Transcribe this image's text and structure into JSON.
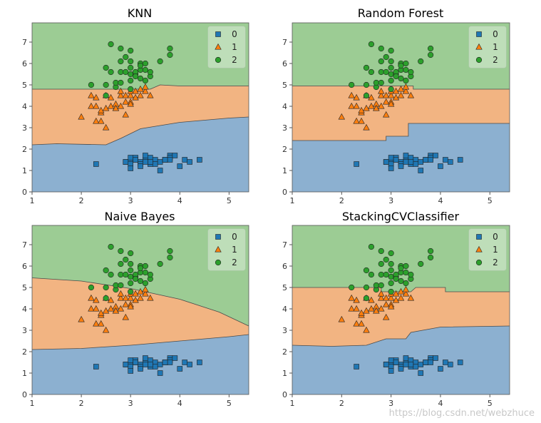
{
  "figure": {
    "watermark": "https://blog.csdn.net/webzhuce",
    "colors": {
      "region_class0": "#8cb0d0",
      "region_class1": "#f2b482",
      "region_class2": "#9ccc94",
      "marker_class0": "#1f77b4",
      "marker_class1": "#ff7f0e",
      "marker_class2": "#2ca02c"
    }
  },
  "chart_data": [
    {
      "type": "scatter",
      "title": "KNN",
      "xlim": [
        1,
        5.4
      ],
      "ylim": [
        0,
        7.9
      ],
      "xticks": [
        "1",
        "2",
        "3",
        "4",
        "5"
      ],
      "yticks": [
        "0",
        "1",
        "2",
        "3",
        "4",
        "5",
        "6",
        "7"
      ],
      "legend": {
        "position": "top-right",
        "labels": [
          "0",
          "1",
          "2"
        ],
        "markers": [
          "square",
          "triangle",
          "circle"
        ]
      },
      "boundary_0_1": [
        [
          1,
          2.2
        ],
        [
          1.5,
          2.25
        ],
        [
          2.5,
          2.2
        ],
        [
          2.8,
          2.5
        ],
        [
          3.2,
          2.95
        ],
        [
          3.6,
          3.1
        ],
        [
          4.0,
          3.25
        ],
        [
          4.5,
          3.35
        ],
        [
          5.0,
          3.45
        ],
        [
          5.4,
          3.5
        ]
      ],
      "boundary_1_2": [
        [
          1,
          4.8
        ],
        [
          3.4,
          4.8
        ],
        [
          3.6,
          5.0
        ],
        [
          4.0,
          4.95
        ],
        [
          5.4,
          4.95
        ]
      ]
    },
    {
      "type": "scatter",
      "title": "Random Forest",
      "xlim": [
        1,
        5.4
      ],
      "ylim": [
        0,
        7.9
      ],
      "xticks": [
        "1",
        "2",
        "3",
        "4",
        "5"
      ],
      "yticks": [
        "0",
        "1",
        "2",
        "3",
        "4",
        "5",
        "6",
        "7"
      ],
      "legend": {
        "position": "top-right",
        "labels": [
          "0",
          "1",
          "2"
        ],
        "markers": [
          "square",
          "triangle",
          "circle"
        ]
      },
      "boundary_0_1": [
        [
          1,
          2.4
        ],
        [
          2.9,
          2.4
        ],
        [
          2.9,
          2.6
        ],
        [
          3.35,
          2.6
        ],
        [
          3.35,
          3.2
        ],
        [
          5.4,
          3.2
        ]
      ],
      "boundary_1_2": [
        [
          1,
          4.95
        ],
        [
          3.45,
          4.95
        ],
        [
          3.45,
          4.8
        ],
        [
          5.4,
          4.8
        ]
      ]
    },
    {
      "type": "scatter",
      "title": "Naive Bayes",
      "xlim": [
        1,
        5.4
      ],
      "ylim": [
        0,
        7.9
      ],
      "xticks": [
        "1",
        "2",
        "3",
        "4",
        "5"
      ],
      "yticks": [
        "0",
        "1",
        "2",
        "3",
        "4",
        "5",
        "6",
        "7"
      ],
      "legend": {
        "position": "top-right",
        "labels": [
          "0",
          "1",
          "2"
        ],
        "markers": [
          "square",
          "triangle",
          "circle"
        ]
      },
      "boundary_0_1": [
        [
          1,
          2.1
        ],
        [
          2,
          2.15
        ],
        [
          3,
          2.3
        ],
        [
          4,
          2.5
        ],
        [
          5,
          2.7
        ],
        [
          5.4,
          2.8
        ]
      ],
      "boundary_1_2": [
        [
          1,
          5.45
        ],
        [
          2,
          5.3
        ],
        [
          3,
          4.95
        ],
        [
          4,
          4.45
        ],
        [
          4.8,
          3.85
        ],
        [
          5.4,
          3.2
        ]
      ]
    },
    {
      "type": "scatter",
      "title": "StackingCVClassifier",
      "xlim": [
        1,
        5.4
      ],
      "ylim": [
        0,
        7.9
      ],
      "xticks": [
        "1",
        "2",
        "3",
        "4",
        "5"
      ],
      "yticks": [
        "0",
        "1",
        "2",
        "3",
        "4",
        "5",
        "6",
        "7"
      ],
      "legend": {
        "position": "top-right",
        "labels": [
          "0",
          "1",
          "2"
        ],
        "markers": [
          "square",
          "triangle",
          "circle"
        ]
      },
      "boundary_0_1": [
        [
          1,
          2.3
        ],
        [
          1.8,
          2.25
        ],
        [
          2.5,
          2.3
        ],
        [
          2.9,
          2.6
        ],
        [
          3.3,
          2.6
        ],
        [
          3.4,
          2.9
        ],
        [
          4.0,
          3.15
        ],
        [
          5.4,
          3.2
        ]
      ],
      "boundary_1_2": [
        [
          1,
          5.0
        ],
        [
          2.8,
          5.0
        ],
        [
          2.8,
          4.8
        ],
        [
          3.4,
          4.8
        ],
        [
          3.5,
          5.0
        ],
        [
          4.1,
          5.0
        ],
        [
          4.1,
          4.8
        ],
        [
          5.4,
          4.8
        ]
      ]
    }
  ],
  "points": {
    "class0": [
      [
        2.3,
        1.3
      ],
      [
        2.9,
        1.4
      ],
      [
        3.0,
        1.4
      ],
      [
        3.0,
        1.3
      ],
      [
        3.1,
        1.5
      ],
      [
        3.1,
        1.6
      ],
      [
        3.2,
        1.4
      ],
      [
        3.2,
        1.3
      ],
      [
        3.3,
        1.5
      ],
      [
        3.3,
        1.7
      ],
      [
        3.4,
        1.5
      ],
      [
        3.4,
        1.6
      ],
      [
        3.4,
        1.3
      ],
      [
        3.5,
        1.4
      ],
      [
        3.5,
        1.5
      ],
      [
        3.5,
        1.3
      ],
      [
        3.6,
        1.4
      ],
      [
        3.7,
        1.5
      ],
      [
        3.8,
        1.7
      ],
      [
        3.8,
        1.6
      ],
      [
        3.9,
        1.7
      ],
      [
        4.0,
        1.2
      ],
      [
        4.1,
        1.5
      ],
      [
        4.2,
        1.4
      ],
      [
        4.4,
        1.5
      ],
      [
        3.0,
        1.6
      ],
      [
        3.1,
        1.5
      ],
      [
        3.6,
        1.0
      ],
      [
        3.2,
        1.2
      ],
      [
        3.4,
        1.4
      ],
      [
        3.8,
        1.5
      ],
      [
        3.0,
        1.1
      ],
      [
        2.9,
        1.4
      ],
      [
        3.3,
        1.4
      ],
      [
        3.7,
        1.5
      ]
    ],
    "class1": [
      [
        2.0,
        3.5
      ],
      [
        2.2,
        4.0
      ],
      [
        2.2,
        4.5
      ],
      [
        2.3,
        4.0
      ],
      [
        2.3,
        3.3
      ],
      [
        2.4,
        3.7
      ],
      [
        2.4,
        3.3
      ],
      [
        2.5,
        3.9
      ],
      [
        2.5,
        3.0
      ],
      [
        2.5,
        4.5
      ],
      [
        2.6,
        4.0
      ],
      [
        2.6,
        4.4
      ],
      [
        2.7,
        3.9
      ],
      [
        2.7,
        4.1
      ],
      [
        2.8,
        4.0
      ],
      [
        2.8,
        4.5
      ],
      [
        2.8,
        4.7
      ],
      [
        2.9,
        4.2
      ],
      [
        2.9,
        4.5
      ],
      [
        2.9,
        3.6
      ],
      [
        3.0,
        4.2
      ],
      [
        3.0,
        4.5
      ],
      [
        3.0,
        4.7
      ],
      [
        3.1,
        4.4
      ],
      [
        3.1,
        4.7
      ],
      [
        3.2,
        4.5
      ],
      [
        3.2,
        4.8
      ],
      [
        3.3,
        4.7
      ],
      [
        3.3,
        4.9
      ],
      [
        3.4,
        4.5
      ],
      [
        2.4,
        3.8
      ],
      [
        2.7,
        3.9
      ],
      [
        3.0,
        4.1
      ],
      [
        2.3,
        4.4
      ]
    ],
    "class2": [
      [
        2.5,
        4.5
      ],
      [
        2.5,
        5.0
      ],
      [
        2.6,
        5.6
      ],
      [
        2.7,
        4.9
      ],
      [
        2.7,
        5.1
      ],
      [
        2.8,
        5.1
      ],
      [
        2.8,
        5.6
      ],
      [
        2.8,
        6.1
      ],
      [
        2.9,
        5.6
      ],
      [
        3.0,
        5.5
      ],
      [
        3.0,
        5.8
      ],
      [
        3.0,
        5.2
      ],
      [
        3.0,
        6.1
      ],
      [
        3.1,
        5.5
      ],
      [
        3.1,
        5.6
      ],
      [
        3.2,
        5.3
      ],
      [
        3.2,
        5.7
      ],
      [
        3.2,
        6.0
      ],
      [
        3.3,
        5.7
      ],
      [
        3.3,
        6.0
      ],
      [
        3.4,
        5.4
      ],
      [
        3.4,
        5.6
      ],
      [
        3.6,
        6.1
      ],
      [
        3.8,
        6.4
      ],
      [
        3.8,
        6.7
      ],
      [
        2.2,
        5.0
      ],
      [
        2.6,
        6.9
      ],
      [
        2.8,
        6.7
      ],
      [
        3.0,
        6.6
      ],
      [
        3.1,
        5.4
      ],
      [
        3.0,
        4.8
      ],
      [
        2.5,
        5.8
      ],
      [
        2.9,
        6.3
      ],
      [
        3.2,
        5.9
      ],
      [
        3.3,
        5.2
      ]
    ]
  }
}
